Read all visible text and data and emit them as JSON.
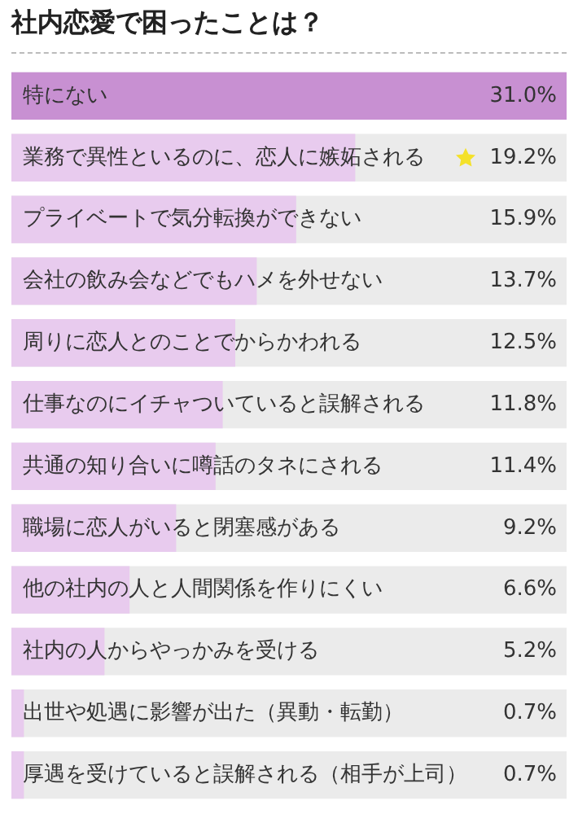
{
  "chart_data": {
    "type": "bar",
    "orientation": "horizontal",
    "title": "社内恋愛で困ったことは？",
    "categories": [
      "特にない",
      "業務で異性といるのに、恋人に嫉妬される",
      "プライベートで気分転換ができない",
      "会社の飲み会などでもハメを外せない",
      "周りに恋人とのことでからかわれる",
      "仕事なのにイチャついていると誤解される",
      "共通の知り合いに噂話のタネにされる",
      "職場に恋人がいると閉塞感がある",
      "他の社内の人と人間関係を作りにくい",
      "社内の人からやっかみを受ける",
      "出世や処遇に影響が出た（異動・転勤）",
      "厚遇を受けていると誤解される（相手が上司）"
    ],
    "values": [
      31.0,
      19.2,
      15.9,
      13.7,
      12.5,
      11.8,
      11.4,
      9.2,
      6.6,
      5.2,
      0.7,
      0.7
    ],
    "colors": [
      "#c890d2",
      "#e8cbee",
      "#e8cbee",
      "#e8cbee",
      "#e8cbee",
      "#e8cbee",
      "#e8cbee",
      "#e8cbee",
      "#e8cbee",
      "#e8cbee",
      "#e8cbee",
      "#e8cbee"
    ],
    "value_labels": [
      "31.0%",
      "19.2%",
      "15.9%",
      "13.7%",
      "12.5%",
      "11.8%",
      "11.4%",
      "9.2%",
      "6.6%",
      "5.2%",
      "0.7%",
      "0.7%"
    ],
    "xlim": [
      0,
      31
    ]
  }
}
